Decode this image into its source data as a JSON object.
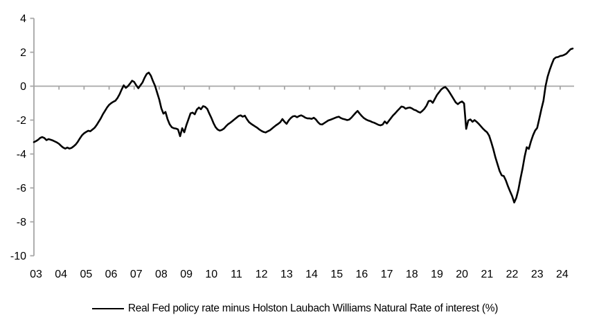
{
  "chart_data": {
    "type": "line",
    "title": "",
    "legend_position": "bottom",
    "background_color": "#FFFFFF",
    "axis_color": "#A6A6A6",
    "line_color": "#000000",
    "text_color": "#000000",
    "grid": "zero-line-only",
    "x_range": [
      2003,
      2024.5
    ],
    "y_range": [
      -10,
      4
    ],
    "y_tick_values": [
      4,
      2,
      0,
      -2,
      -4,
      -6,
      -8,
      -10
    ],
    "x_tick_labels": [
      "03",
      "04",
      "05",
      "06",
      "07",
      "08",
      "09",
      "10",
      "11",
      "12",
      "13",
      "14",
      "15",
      "16",
      "17",
      "18",
      "19",
      "20",
      "21",
      "22",
      "23",
      "24"
    ],
    "series": [
      {
        "name": "Real Fed policy rate minus Holston Laubach Williams Natural Rate of interest (%)",
        "color": "#000000",
        "x_start": 2003,
        "x_step_years": 0.08333,
        "values": [
          -3.3,
          -3.24,
          -3.16,
          -3.05,
          -3.0,
          -3.06,
          -3.18,
          -3.12,
          -3.16,
          -3.2,
          -3.26,
          -3.32,
          -3.4,
          -3.52,
          -3.62,
          -3.68,
          -3.62,
          -3.68,
          -3.64,
          -3.55,
          -3.44,
          -3.28,
          -3.08,
          -2.9,
          -2.78,
          -2.7,
          -2.63,
          -2.66,
          -2.56,
          -2.46,
          -2.3,
          -2.1,
          -1.9,
          -1.66,
          -1.46,
          -1.26,
          -1.1,
          -1.0,
          -0.92,
          -0.86,
          -0.7,
          -0.48,
          -0.2,
          0.05,
          -0.1,
          0.0,
          0.15,
          0.32,
          0.25,
          0.05,
          -0.12,
          0.05,
          0.22,
          0.5,
          0.72,
          0.8,
          0.62,
          0.3,
          0.02,
          -0.38,
          -0.78,
          -1.3,
          -1.62,
          -1.52,
          -1.95,
          -2.25,
          -2.42,
          -2.48,
          -2.5,
          -2.55,
          -2.95,
          -2.48,
          -2.72,
          -2.3,
          -1.95,
          -1.6,
          -1.56,
          -1.66,
          -1.38,
          -1.26,
          -1.36,
          -1.18,
          -1.22,
          -1.34,
          -1.62,
          -1.88,
          -2.18,
          -2.42,
          -2.56,
          -2.62,
          -2.58,
          -2.5,
          -2.36,
          -2.24,
          -2.16,
          -2.06,
          -1.96,
          -1.86,
          -1.76,
          -1.72,
          -1.8,
          -1.74,
          -1.95,
          -2.12,
          -2.22,
          -2.3,
          -2.38,
          -2.46,
          -2.56,
          -2.64,
          -2.7,
          -2.73,
          -2.66,
          -2.6,
          -2.5,
          -2.4,
          -2.3,
          -2.22,
          -2.12,
          -1.94,
          -2.1,
          -2.22,
          -2.02,
          -1.88,
          -1.78,
          -1.76,
          -1.83,
          -1.76,
          -1.72,
          -1.78,
          -1.86,
          -1.9,
          -1.9,
          -1.93,
          -1.86,
          -1.96,
          -2.12,
          -2.24,
          -2.26,
          -2.18,
          -2.1,
          -2.02,
          -1.98,
          -1.93,
          -1.88,
          -1.83,
          -1.8,
          -1.88,
          -1.93,
          -1.96,
          -2.0,
          -1.97,
          -1.86,
          -1.72,
          -1.58,
          -1.46,
          -1.62,
          -1.76,
          -1.88,
          -1.96,
          -2.02,
          -2.06,
          -2.12,
          -2.16,
          -2.22,
          -2.28,
          -2.31,
          -2.26,
          -2.08,
          -2.2,
          -2.04,
          -1.88,
          -1.72,
          -1.6,
          -1.46,
          -1.33,
          -1.2,
          -1.23,
          -1.33,
          -1.28,
          -1.26,
          -1.31,
          -1.39,
          -1.43,
          -1.51,
          -1.56,
          -1.46,
          -1.33,
          -1.15,
          -0.88,
          -0.86,
          -0.98,
          -0.75,
          -0.52,
          -0.36,
          -0.2,
          -0.1,
          -0.05,
          -0.18,
          -0.36,
          -0.56,
          -0.76,
          -0.96,
          -1.06,
          -0.96,
          -0.9,
          -1.02,
          -2.52,
          -2.02,
          -1.96,
          -2.1,
          -2.0,
          -2.1,
          -2.22,
          -2.36,
          -2.5,
          -2.62,
          -2.72,
          -2.92,
          -3.3,
          -3.72,
          -4.2,
          -4.6,
          -5.0,
          -5.26,
          -5.3,
          -5.56,
          -5.9,
          -6.2,
          -6.48,
          -6.86,
          -6.58,
          -6.1,
          -5.45,
          -4.85,
          -4.15,
          -3.6,
          -3.7,
          -3.26,
          -2.9,
          -2.62,
          -2.46,
          -1.92,
          -1.36,
          -0.86,
          0.0,
          0.56,
          0.96,
          1.3,
          1.6,
          1.7,
          1.72,
          1.78,
          1.8,
          1.85,
          1.92,
          2.05,
          2.18,
          2.22
        ]
      }
    ]
  }
}
